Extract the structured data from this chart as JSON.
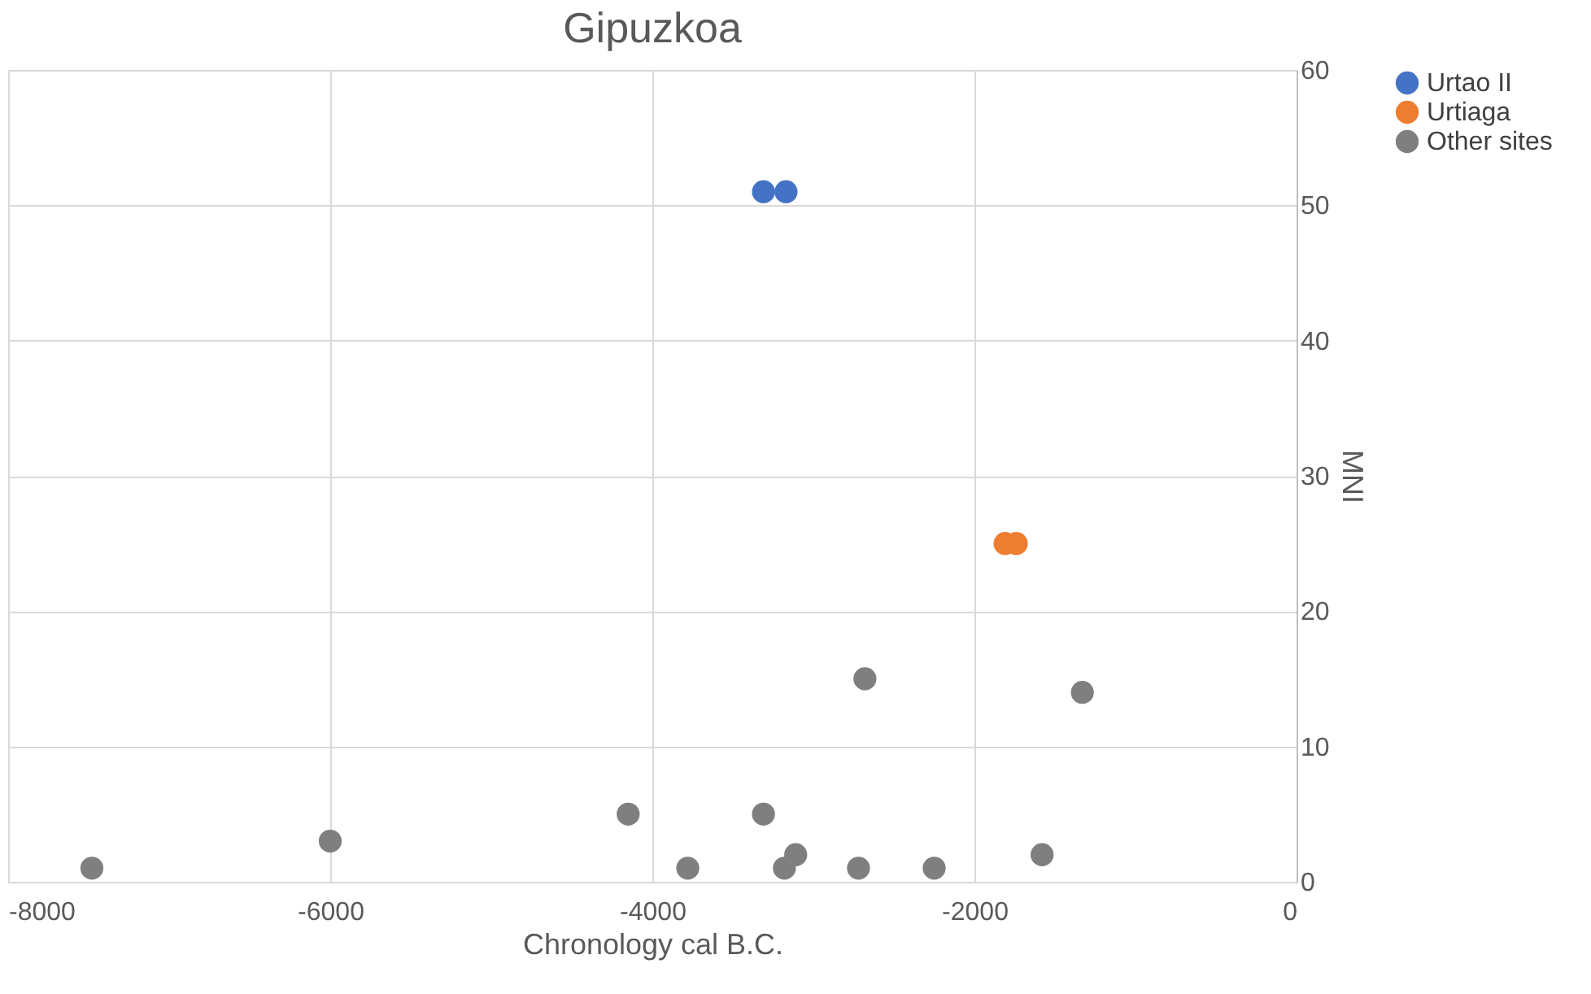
{
  "chart_data": {
    "type": "scatter",
    "title": "Gipuzkoa",
    "xlabel": "Chronology cal B.C.",
    "ylabel": "MNI",
    "xlim": [
      -8000,
      0
    ],
    "xticks": [
      -8000,
      -6000,
      -4000,
      -2000,
      0
    ],
    "ylim": [
      0,
      60
    ],
    "yticks": [
      0,
      10,
      20,
      30,
      40,
      50,
      60
    ],
    "grid": true,
    "legend": "right",
    "marker": "circle",
    "series": [
      {
        "name": "Urtao II",
        "color": "#4472c4",
        "x": [
          -3310,
          -3170
        ],
        "values": [
          51,
          51
        ]
      },
      {
        "name": "Urtiaga",
        "color": "#ed7d31",
        "x": [
          -1810,
          -1740
        ],
        "values": [
          25,
          25
        ]
      },
      {
        "name": "Other sites",
        "color": "#7f7f7f",
        "x": [
          -7480,
          -6000,
          -4150,
          -3780,
          -3310,
          -3180,
          -3110,
          -2720,
          -2680,
          -2250,
          -1580,
          -1330
        ],
        "values": [
          1,
          3,
          5,
          1,
          5,
          1,
          2,
          1,
          15,
          1,
          2,
          14
        ]
      }
    ]
  }
}
